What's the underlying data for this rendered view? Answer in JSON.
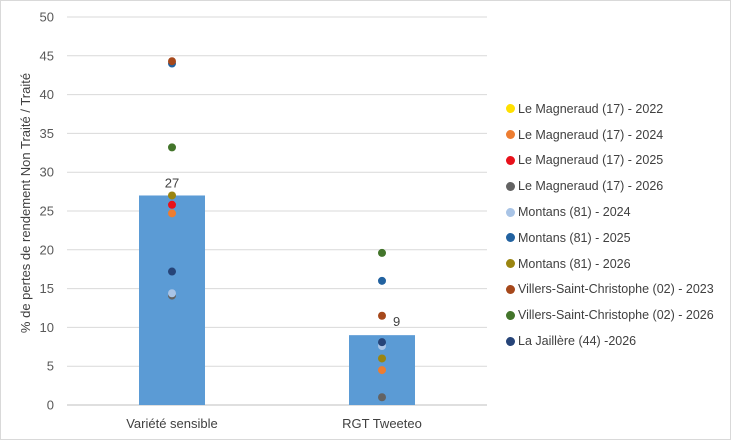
{
  "chart_data": {
    "type": "bar",
    "categories": [
      "Variété sensible",
      "RGT Tweeteo"
    ],
    "values": [
      27,
      9
    ],
    "bar_color": "#5b9bd5",
    "ylabel": "% de pertes de rendement Non Traité / Traité",
    "xlabel": "",
    "ylim": [
      0,
      50
    ],
    "yticks": [
      0,
      5,
      10,
      15,
      20,
      25,
      30,
      35,
      40,
      45,
      50
    ],
    "grid": true,
    "legend_position": "right",
    "series": [
      {
        "name": "Le Magneraud (17) - 2022",
        "color": "#ffe000",
        "values": [
          null,
          null
        ]
      },
      {
        "name": "Le Magneraud (17) - 2024",
        "color": "#ed7d31",
        "values": [
          24.7,
          4.5
        ]
      },
      {
        "name": "Le Magneraud (17) - 2025",
        "color": "#e8111b",
        "values": [
          25.8,
          null
        ]
      },
      {
        "name": "Le Magneraud (17) - 2026",
        "color": "#636363",
        "values": [
          14.1,
          1.0
        ]
      },
      {
        "name": "Montans (81) - 2024",
        "color": "#a9c4e6",
        "values": [
          14.4,
          7.6
        ]
      },
      {
        "name": "Montans (81) - 2025",
        "color": "#2262a0",
        "values": [
          44.0,
          16.0
        ]
      },
      {
        "name": "Montans (81) - 2026",
        "color": "#9a8510",
        "values": [
          27.0,
          6.0
        ]
      },
      {
        "name": "Villers-Saint-Christophe (02) - 2023",
        "color": "#a6481b",
        "values": [
          44.3,
          11.5
        ]
      },
      {
        "name": "Villers-Saint-Christophe (02) - 2026",
        "color": "#43752b",
        "values": [
          33.2,
          19.6
        ]
      },
      {
        "name": "La Jaillère (44) -2026",
        "color": "#264478",
        "values": [
          17.2,
          8.1
        ]
      }
    ]
  }
}
